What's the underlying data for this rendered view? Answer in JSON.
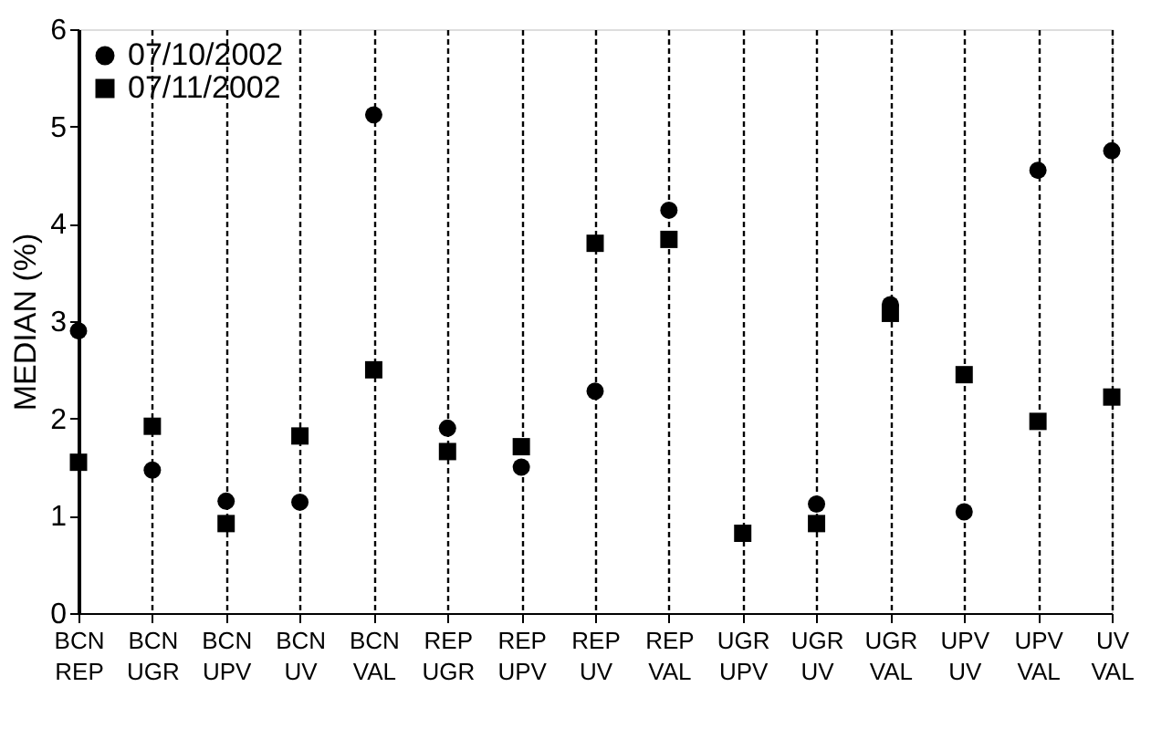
{
  "chart_data": {
    "type": "scatter",
    "ylabel": "MEDIAN (%)",
    "categories": [
      "BCN REP",
      "BCN UGR",
      "BCN UPV",
      "BCN UV",
      "BCN VAL",
      "REP UGR",
      "REP UPV",
      "REP UV",
      "REP VAL",
      "UGR UPV",
      "UGR UV",
      "UGR VAL",
      "UPV UV",
      "UPV VAL",
      "UV VAL"
    ],
    "series": [
      {
        "name": "07/10/2002",
        "color": "#000000",
        "marker": "circle",
        "values": [
          2.9,
          1.47,
          1.15,
          1.14,
          5.12,
          1.9,
          1.5,
          2.28,
          4.14,
          null,
          1.12,
          3.17,
          1.04,
          4.55,
          4.75
        ]
      },
      {
        "name": "07/11/2002",
        "color": "#000000",
        "marker": "square",
        "values": [
          1.55,
          1.92,
          0.92,
          1.82,
          2.5,
          1.66,
          1.71,
          3.8,
          3.84,
          0.82,
          0.92,
          3.08,
          2.45,
          1.97,
          2.22
        ]
      }
    ],
    "ylim": [
      0,
      6
    ],
    "yticks": [
      0,
      1,
      2,
      3,
      4,
      5,
      6
    ],
    "grid": "x",
    "legend": "top left"
  }
}
